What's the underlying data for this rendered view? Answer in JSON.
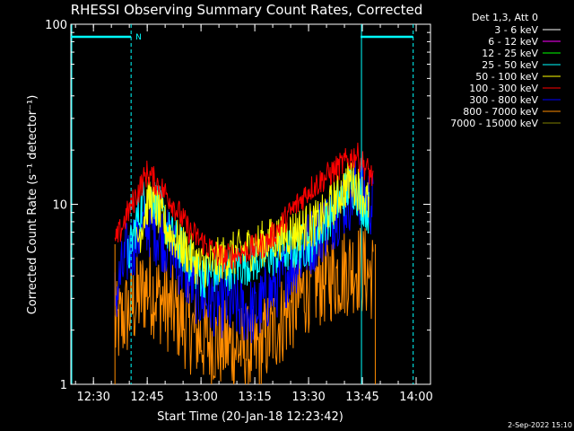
{
  "chart_data": {
    "type": "line",
    "title": "RHESSI Observing Summary Count Rates, Corrected",
    "xlabel": "Start Time (20-Jan-18 12:23:42)",
    "ylabel": "Corrected Count Rate (s⁻¹ detector⁻¹)",
    "y_scale": "log",
    "ylim": [
      1,
      100
    ],
    "xlim": [
      "12:23:42",
      "14:04:00"
    ],
    "x_ticks": [
      "12:30",
      "12:45",
      "13:00",
      "13:15",
      "13:30",
      "13:45",
      "14:00"
    ],
    "y_ticks": [
      "1",
      "10",
      "100"
    ],
    "grid": false,
    "legend_title": "Det 1,3, Att 0",
    "legend_position": "top-right, outside plot",
    "series": [
      {
        "name": "3 - 6 keV",
        "color": "#ffffff",
        "values": []
      },
      {
        "name": "6 - 12 keV",
        "color": "#ff00ff",
        "values": []
      },
      {
        "name": "12 - 25 keV",
        "color": "#00ff00",
        "values": []
      },
      {
        "name": "25 - 50 keV",
        "color": "#00ffff",
        "values": [
          [
            12.66,
            5.0
          ],
          [
            12.7,
            8.0
          ],
          [
            12.75,
            12.0
          ],
          [
            12.8,
            10.0
          ],
          [
            12.85,
            7.0
          ],
          [
            13.0,
            4.0
          ],
          [
            13.5,
            6.0
          ],
          [
            13.7,
            13.0
          ],
          [
            13.78,
            9.0
          ]
        ]
      },
      {
        "name": "50 - 100 keV",
        "color": "#ffff00",
        "values": [
          [
            12.7,
            6.0
          ],
          [
            12.76,
            11.0
          ],
          [
            12.85,
            7.0
          ],
          [
            13.0,
            4.5
          ],
          [
            13.55,
            8.0
          ],
          [
            13.7,
            14.0
          ],
          [
            13.78,
            10.0
          ]
        ]
      },
      {
        "name": "100 - 300 keV",
        "color": "#ff0000",
        "values": [
          [
            12.6,
            6.0
          ],
          [
            12.66,
            9.0
          ],
          [
            12.75,
            15.0
          ],
          [
            12.85,
            11.0
          ],
          [
            12.95,
            7.0
          ],
          [
            13.1,
            5.0
          ],
          [
            13.3,
            6.0
          ],
          [
            13.5,
            12.0
          ],
          [
            13.72,
            19.0
          ],
          [
            13.8,
            14.0
          ]
        ]
      },
      {
        "name": "300 - 800 keV",
        "color": "#0000ff",
        "values": [
          [
            12.6,
            3.0
          ],
          [
            12.66,
            5.5
          ],
          [
            12.75,
            8.0
          ],
          [
            12.85,
            6.0
          ],
          [
            13.0,
            3.0
          ],
          [
            13.25,
            2.5
          ],
          [
            13.5,
            6.0
          ],
          [
            13.72,
            12.0
          ],
          [
            13.8,
            10.0
          ]
        ]
      },
      {
        "name": "800 - 7000 keV",
        "color": "#ff8c00",
        "values": [
          [
            12.6,
            2.0
          ],
          [
            12.75,
            3.5
          ],
          [
            13.0,
            1.8
          ],
          [
            13.25,
            1.5
          ],
          [
            13.5,
            3.5
          ],
          [
            13.72,
            4.5
          ],
          [
            13.8,
            4.0
          ]
        ]
      },
      {
        "name": "7000 - 15000 keV",
        "color": "#808000",
        "values": []
      }
    ],
    "annotations": [
      {
        "label": "N",
        "type": "night interval",
        "start": "12:23:42",
        "end": "12:40:30"
      },
      {
        "label": "",
        "type": "night interval",
        "start": "13:44:30",
        "end": "13:59:10"
      }
    ]
  },
  "footer_date": "2-Sep-2022 15:10"
}
